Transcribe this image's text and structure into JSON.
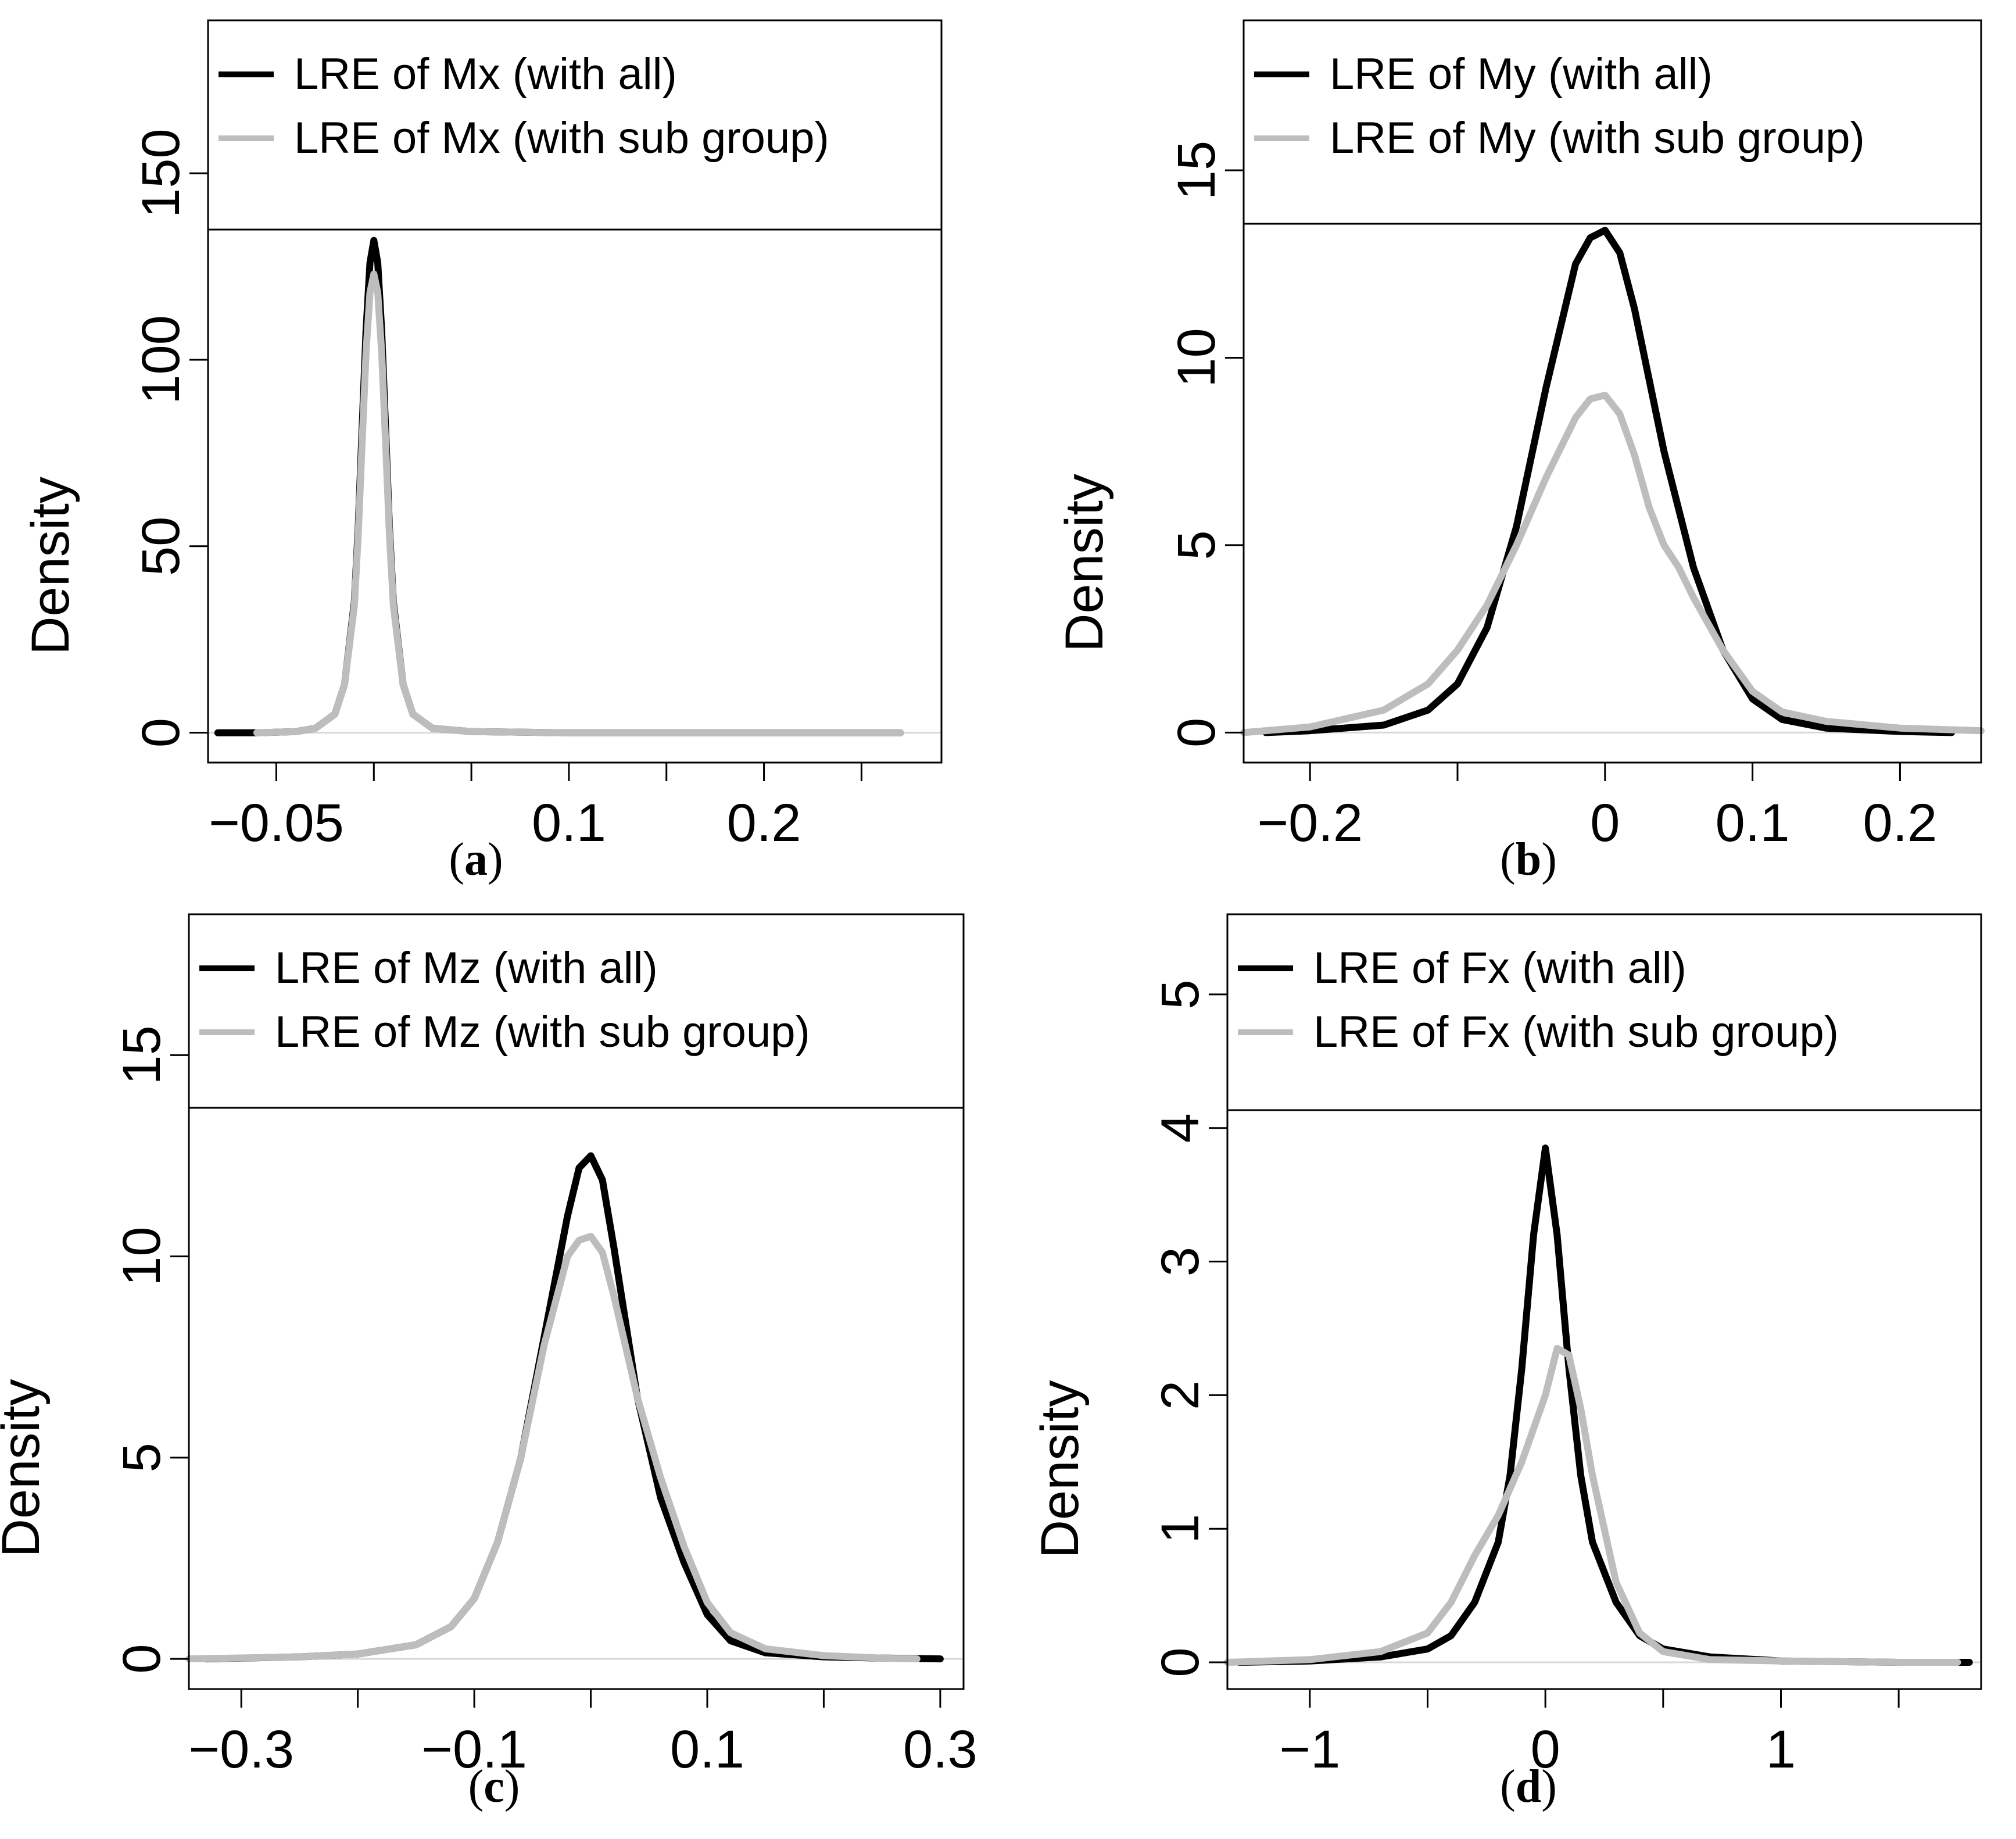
{
  "figure": {
    "panels": [
      {
        "caption_open": "(",
        "caption_letter": "a",
        "caption_close": ")",
        "ylabel": "Density",
        "legend": [
          {
            "label": "LRE of Mx (with all)",
            "color": "#000000"
          },
          {
            "label": "LRE of Mx (with sub group)",
            "color": "#bdbdbd"
          }
        ]
      },
      {
        "caption_open": "(",
        "caption_letter": "b",
        "caption_close": ")",
        "ylabel": "Density",
        "legend": [
          {
            "label": "LRE of My (with all)",
            "color": "#000000"
          },
          {
            "label": "LRE of My (with sub group)",
            "color": "#bdbdbd"
          }
        ]
      },
      {
        "caption_open": "(",
        "caption_letter": "c",
        "caption_close": ")",
        "ylabel": "Density",
        "legend": [
          {
            "label": "LRE of Mz (with all)",
            "color": "#000000"
          },
          {
            "label": "LRE of Mz (with sub group)",
            "color": "#bdbdbd"
          }
        ]
      },
      {
        "caption_open": "(",
        "caption_letter": "d",
        "caption_close": ")",
        "ylabel": "Density",
        "legend": [
          {
            "label": "LRE of Fx (with all)",
            "color": "#000000"
          },
          {
            "label": "LRE of Fx (with sub group)",
            "color": "#bdbdbd"
          }
        ]
      }
    ]
  },
  "chart_data": [
    {
      "type": "line",
      "panel": "a",
      "title": "",
      "xlabel": "",
      "ylabel": "Density",
      "xlim": [
        -0.085,
        0.291
      ],
      "ylim": [
        -8,
        191
      ],
      "xticks": [
        -0.05,
        0,
        0.05,
        0.1,
        0.15,
        0.2,
        0.25
      ],
      "xtick_labels": [
        "−0.05",
        "",
        "",
        "0.1",
        "",
        "0.2",
        ""
      ],
      "yticks": [
        0,
        50,
        100,
        150
      ],
      "ytick_labels": [
        "0",
        "50",
        "100",
        "150"
      ],
      "legend_position": "top",
      "series": [
        {
          "name": "LRE of Mx (with all)",
          "color": "#000000",
          "x": [
            -0.08,
            -0.06,
            -0.04,
            -0.03,
            -0.02,
            -0.015,
            -0.01,
            -0.008,
            -0.006,
            -0.004,
            -0.002,
            0,
            0.002,
            0.004,
            0.006,
            0.008,
            0.01,
            0.015,
            0.02,
            0.03,
            0.05,
            0.1,
            0.15,
            0.2,
            0.27
          ],
          "y": [
            0,
            0,
            0.3,
            1.2,
            5,
            13,
            35,
            55,
            82,
            108,
            126,
            132,
            126,
            108,
            82,
            55,
            35,
            13,
            5,
            1.2,
            0.3,
            0,
            0,
            0,
            0
          ]
        },
        {
          "name": "LRE of Mx (with sub group)",
          "color": "#bdbdbd",
          "x": [
            -0.06,
            -0.04,
            -0.03,
            -0.02,
            -0.015,
            -0.01,
            -0.008,
            -0.006,
            -0.004,
            -0.002,
            0,
            0.002,
            0.004,
            0.006,
            0.008,
            0.01,
            0.015,
            0.02,
            0.03,
            0.05,
            0.1,
            0.15,
            0.2,
            0.27
          ],
          "y": [
            0,
            0.3,
            1.2,
            5,
            13,
            34,
            53,
            78,
            102,
            118,
            123,
            118,
            102,
            78,
            53,
            34,
            13,
            5,
            1.2,
            0.3,
            0,
            0,
            0,
            0
          ]
        }
      ]
    },
    {
      "type": "line",
      "panel": "b",
      "title": "",
      "xlabel": "",
      "ylabel": "Density",
      "xlim": [
        -0.245,
        0.255
      ],
      "ylim": [
        -0.8,
        19
      ],
      "xticks": [
        -0.2,
        -0.1,
        0,
        0.1,
        0.2
      ],
      "xtick_labels": [
        "−0.2",
        "",
        "0",
        "0.1",
        "0.2"
      ],
      "yticks": [
        0,
        5,
        10,
        15
      ],
      "ytick_labels": [
        "0",
        "5",
        "10",
        "15"
      ],
      "legend_position": "top",
      "series": [
        {
          "name": "LRE of My (with all)",
          "color": "#000000",
          "x": [
            -0.23,
            -0.2,
            -0.15,
            -0.12,
            -0.1,
            -0.08,
            -0.06,
            -0.04,
            -0.02,
            -0.01,
            0,
            0.01,
            0.02,
            0.04,
            0.06,
            0.08,
            0.1,
            0.12,
            0.15,
            0.2,
            0.235
          ],
          "y": [
            0,
            0.05,
            0.2,
            0.6,
            1.3,
            2.8,
            5.5,
            9.2,
            12.5,
            13.2,
            13.4,
            12.8,
            11.3,
            7.5,
            4.4,
            2.2,
            0.9,
            0.35,
            0.12,
            0.03,
            0
          ]
        },
        {
          "name": "LRE of My (with sub group)",
          "color": "#bdbdbd",
          "x": [
            -0.245,
            -0.2,
            -0.15,
            -0.12,
            -0.1,
            -0.08,
            -0.06,
            -0.04,
            -0.02,
            -0.01,
            0,
            0.01,
            0.02,
            0.03,
            0.04,
            0.05,
            0.06,
            0.08,
            0.1,
            0.12,
            0.15,
            0.2,
            0.255
          ],
          "y": [
            0,
            0.15,
            0.6,
            1.3,
            2.2,
            3.4,
            5.0,
            6.8,
            8.4,
            8.9,
            9.0,
            8.5,
            7.4,
            6.0,
            5.0,
            4.4,
            3.6,
            2.2,
            1.1,
            0.55,
            0.3,
            0.12,
            0.05
          ]
        }
      ]
    },
    {
      "type": "line",
      "panel": "c",
      "title": "",
      "xlabel": "",
      "ylabel": "Density",
      "xlim": [
        -0.345,
        0.32
      ],
      "ylim": [
        -0.75,
        18.5
      ],
      "xticks": [
        -0.3,
        -0.2,
        -0.1,
        0,
        0.1,
        0.2,
        0.3
      ],
      "xtick_labels": [
        "−0.3",
        "",
        "−0.1",
        "",
        "0.1",
        "",
        "0.3"
      ],
      "yticks": [
        0,
        5,
        10,
        15
      ],
      "ytick_labels": [
        "0",
        "5",
        "10",
        "15"
      ],
      "legend_position": "top",
      "series": [
        {
          "name": "LRE of Mz (with all)",
          "color": "#000000",
          "x": [
            -0.33,
            -0.25,
            -0.2,
            -0.15,
            -0.12,
            -0.1,
            -0.08,
            -0.06,
            -0.04,
            -0.02,
            -0.01,
            0,
            0.01,
            0.02,
            0.04,
            0.06,
            0.08,
            0.1,
            0.12,
            0.15,
            0.2,
            0.25,
            0.3
          ],
          "y": [
            0,
            0.05,
            0.12,
            0.35,
            0.8,
            1.5,
            2.9,
            5.0,
            8.0,
            11.0,
            12.2,
            12.5,
            11.9,
            10.2,
            6.5,
            4.0,
            2.4,
            1.1,
            0.45,
            0.15,
            0.05,
            0.02,
            0
          ]
        },
        {
          "name": "LRE of Mz (with sub group)",
          "color": "#bdbdbd",
          "x": [
            -0.345,
            -0.25,
            -0.2,
            -0.15,
            -0.12,
            -0.1,
            -0.08,
            -0.06,
            -0.04,
            -0.02,
            -0.01,
            0,
            0.01,
            0.02,
            0.04,
            0.06,
            0.08,
            0.1,
            0.12,
            0.15,
            0.2,
            0.25,
            0.28
          ],
          "y": [
            0,
            0.05,
            0.12,
            0.35,
            0.8,
            1.5,
            2.9,
            5.0,
            7.8,
            10.0,
            10.4,
            10.5,
            10.1,
            9.0,
            6.5,
            4.5,
            2.8,
            1.4,
            0.65,
            0.25,
            0.08,
            0.02,
            0
          ]
        }
      ]
    },
    {
      "type": "line",
      "panel": "d",
      "title": "",
      "xlabel": "",
      "ylabel": "Density",
      "xlim": [
        -1.35,
        1.85
      ],
      "ylim": [
        -0.2,
        5.6
      ],
      "xticks": [
        -1.5,
        -1,
        -0.5,
        0,
        0.5,
        1,
        1.5
      ],
      "xtick_labels": [
        "",
        "−1",
        "",
        "0",
        "",
        "1",
        ""
      ],
      "yticks": [
        0,
        1,
        2,
        3,
        4,
        5
      ],
      "ytick_labels": [
        "0",
        "1",
        "2",
        "3",
        "4",
        "5"
      ],
      "legend_position": "top",
      "series": [
        {
          "name": "LRE of Fx (with all)",
          "color": "#000000",
          "x": [
            -1.3,
            -1.0,
            -0.7,
            -0.5,
            -0.4,
            -0.3,
            -0.2,
            -0.15,
            -0.1,
            -0.05,
            0,
            0.05,
            0.1,
            0.15,
            0.2,
            0.3,
            0.4,
            0.5,
            0.7,
            1.0,
            1.5,
            1.8
          ],
          "y": [
            0,
            0.01,
            0.04,
            0.1,
            0.2,
            0.45,
            0.9,
            1.4,
            2.2,
            3.2,
            3.85,
            3.2,
            2.2,
            1.4,
            0.9,
            0.45,
            0.2,
            0.1,
            0.04,
            0.01,
            0,
            0
          ]
        },
        {
          "name": "LRE of Fx (with sub group)",
          "color": "#bdbdbd",
          "x": [
            -1.35,
            -1.0,
            -0.7,
            -0.5,
            -0.4,
            -0.3,
            -0.2,
            -0.1,
            0,
            0.05,
            0.1,
            0.15,
            0.2,
            0.3,
            0.4,
            0.5,
            0.7,
            1.0,
            1.5,
            1.75
          ],
          "y": [
            0,
            0.02,
            0.08,
            0.22,
            0.45,
            0.8,
            1.1,
            1.5,
            2.0,
            2.35,
            2.3,
            1.9,
            1.4,
            0.6,
            0.22,
            0.08,
            0.02,
            0.01,
            0,
            0
          ]
        }
      ]
    }
  ]
}
